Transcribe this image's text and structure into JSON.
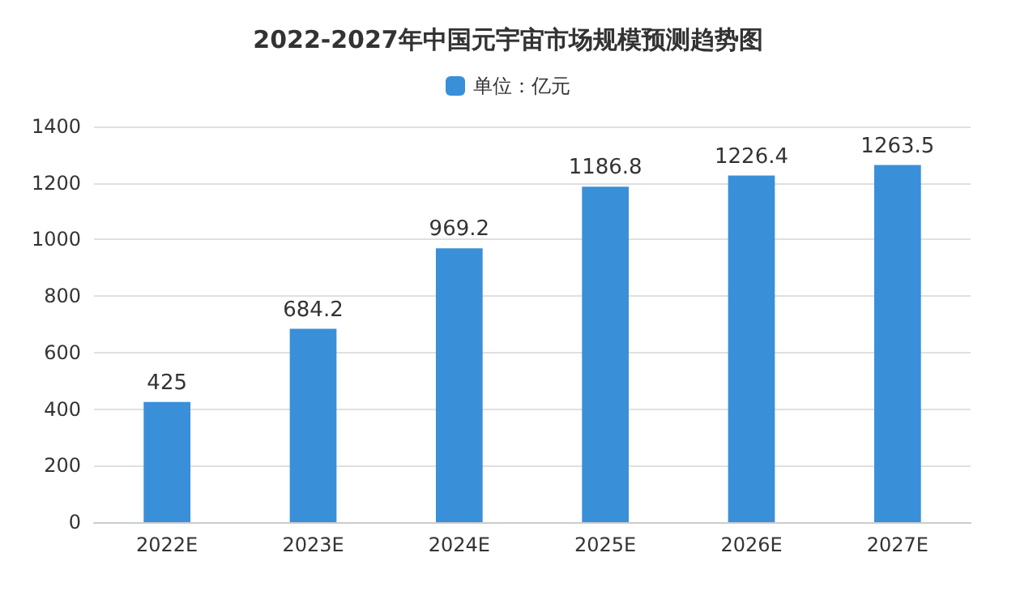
{
  "chart_data": {
    "type": "bar",
    "title": "2022-2027年中国元宇宙市场规模预测趋势图",
    "categories": [
      "2022E",
      "2023E",
      "2024E",
      "2025E",
      "2026E",
      "2027E"
    ],
    "series": [
      {
        "name": "单位：亿元",
        "color": "#3a8fd9",
        "values": [
          425,
          684.2,
          969.2,
          1186.8,
          1226.4,
          1263.5
        ]
      }
    ],
    "ylim": [
      0,
      1400
    ],
    "yticks": [
      0,
      200,
      400,
      600,
      800,
      1000,
      1200,
      1400
    ],
    "grid": "y",
    "legend": "top",
    "data_labels": true
  }
}
